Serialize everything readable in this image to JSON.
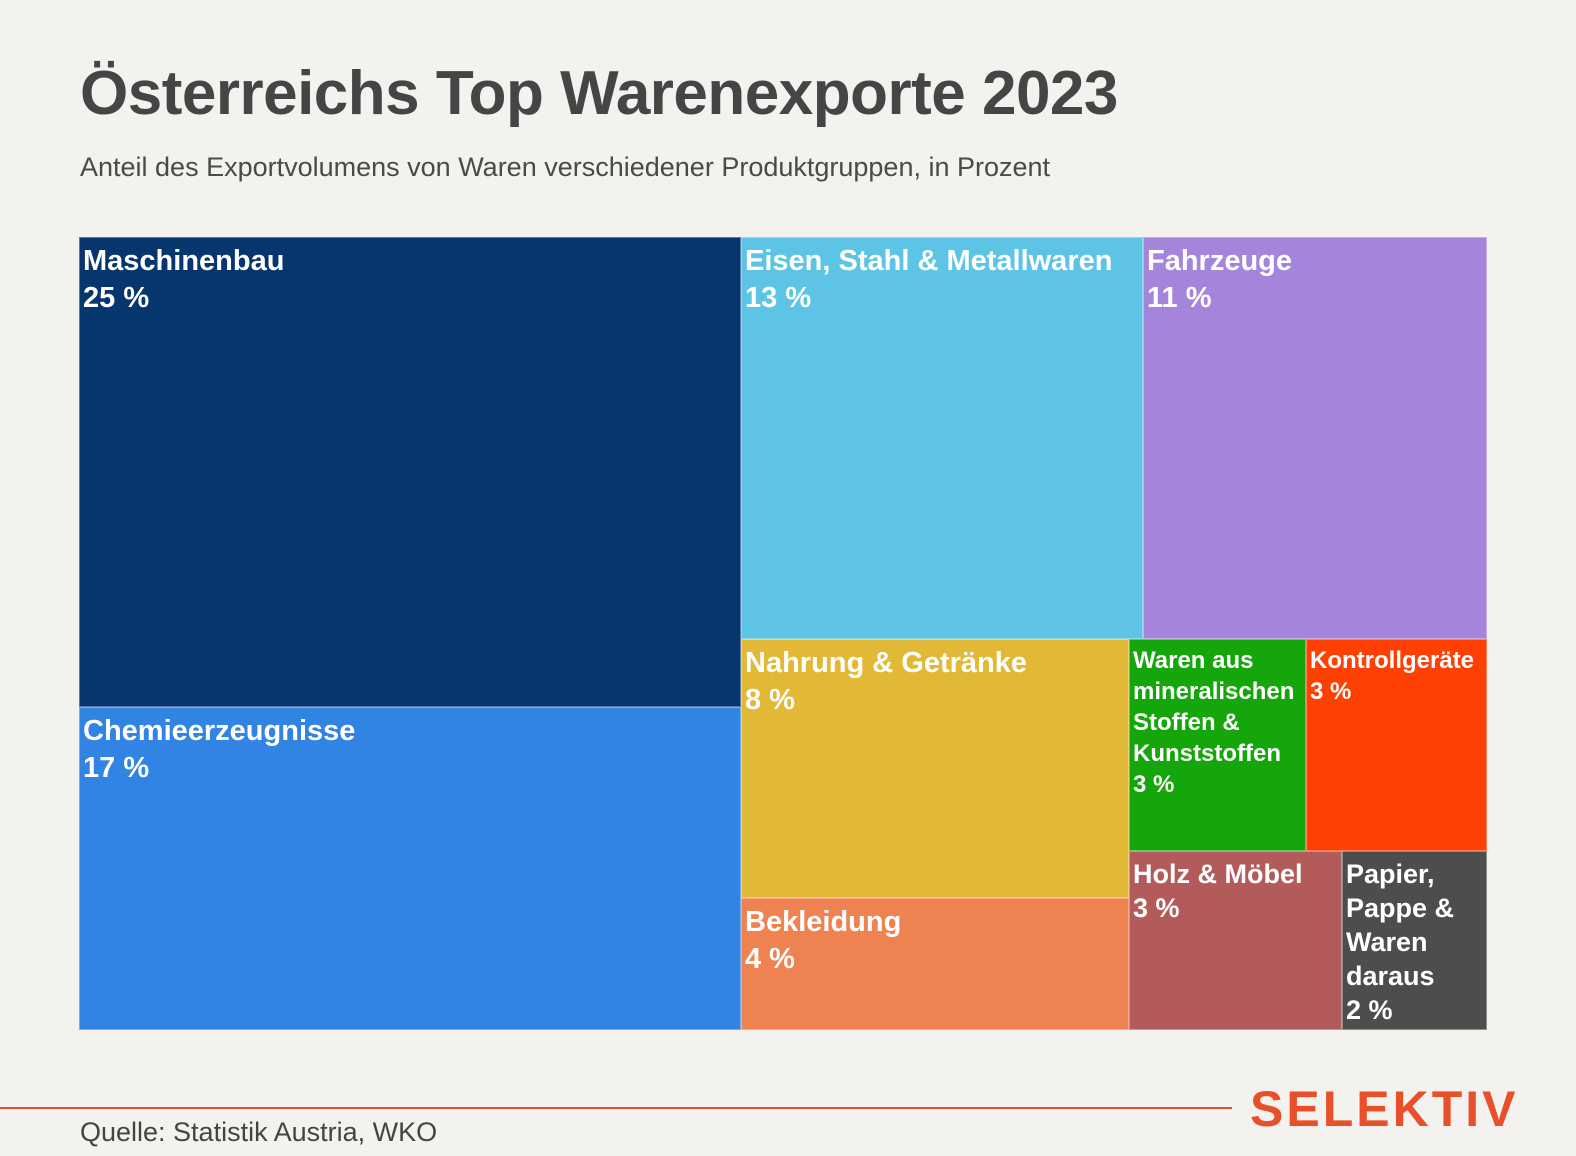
{
  "header": {
    "title": "Österreichs Top Warenexporte 2023",
    "subtitle": "Anteil des Exportvolumens von Waren verschiedener Produktgruppen, in Prozent"
  },
  "chart_data": {
    "type": "treemap",
    "title": "Österreichs Top Warenexporte 2023",
    "subtitle": "Anteil des Exportvolumens von Waren verschiedener Produktgruppen, in Prozent",
    "unit": "%",
    "series": [
      {
        "name": "Maschinenbau",
        "value": 25,
        "label": "25 %",
        "color": "#07356e"
      },
      {
        "name": "Chemieerzeugnisse",
        "value": 17,
        "label": "17 %",
        "color": "#3183e4"
      },
      {
        "name": "Eisen, Stahl & Metallwaren",
        "value": 13,
        "label": "13 %",
        "color": "#5dc4e5"
      },
      {
        "name": "Fahrzeuge",
        "value": 11,
        "label": "11 %",
        "color": "#a584dc"
      },
      {
        "name": "Nahrung & Getränke",
        "value": 8,
        "label": "8 %",
        "color": "#e2b937"
      },
      {
        "name": "Bekleidung",
        "value": 4,
        "label": "4 %",
        "color": "#ee8250"
      },
      {
        "name": "Waren aus mineralischen Stoffen & Kunststoffen",
        "value": 3,
        "label": "3 %",
        "color": "#14a60b"
      },
      {
        "name": "Kontrollgeräte",
        "value": 3,
        "label": "3 %",
        "color": "#fe4004"
      },
      {
        "name": "Holz & Möbel",
        "value": 3,
        "label": "3 %",
        "color": "#b35b5b"
      },
      {
        "name": "Papier, Pappe & Waren daraus",
        "value": 2,
        "label": "2 %",
        "color": "#4d4d4d"
      }
    ]
  },
  "footer": {
    "source": "Quelle: Statistik Austria, WKO",
    "brand": "SELEKTIV"
  }
}
